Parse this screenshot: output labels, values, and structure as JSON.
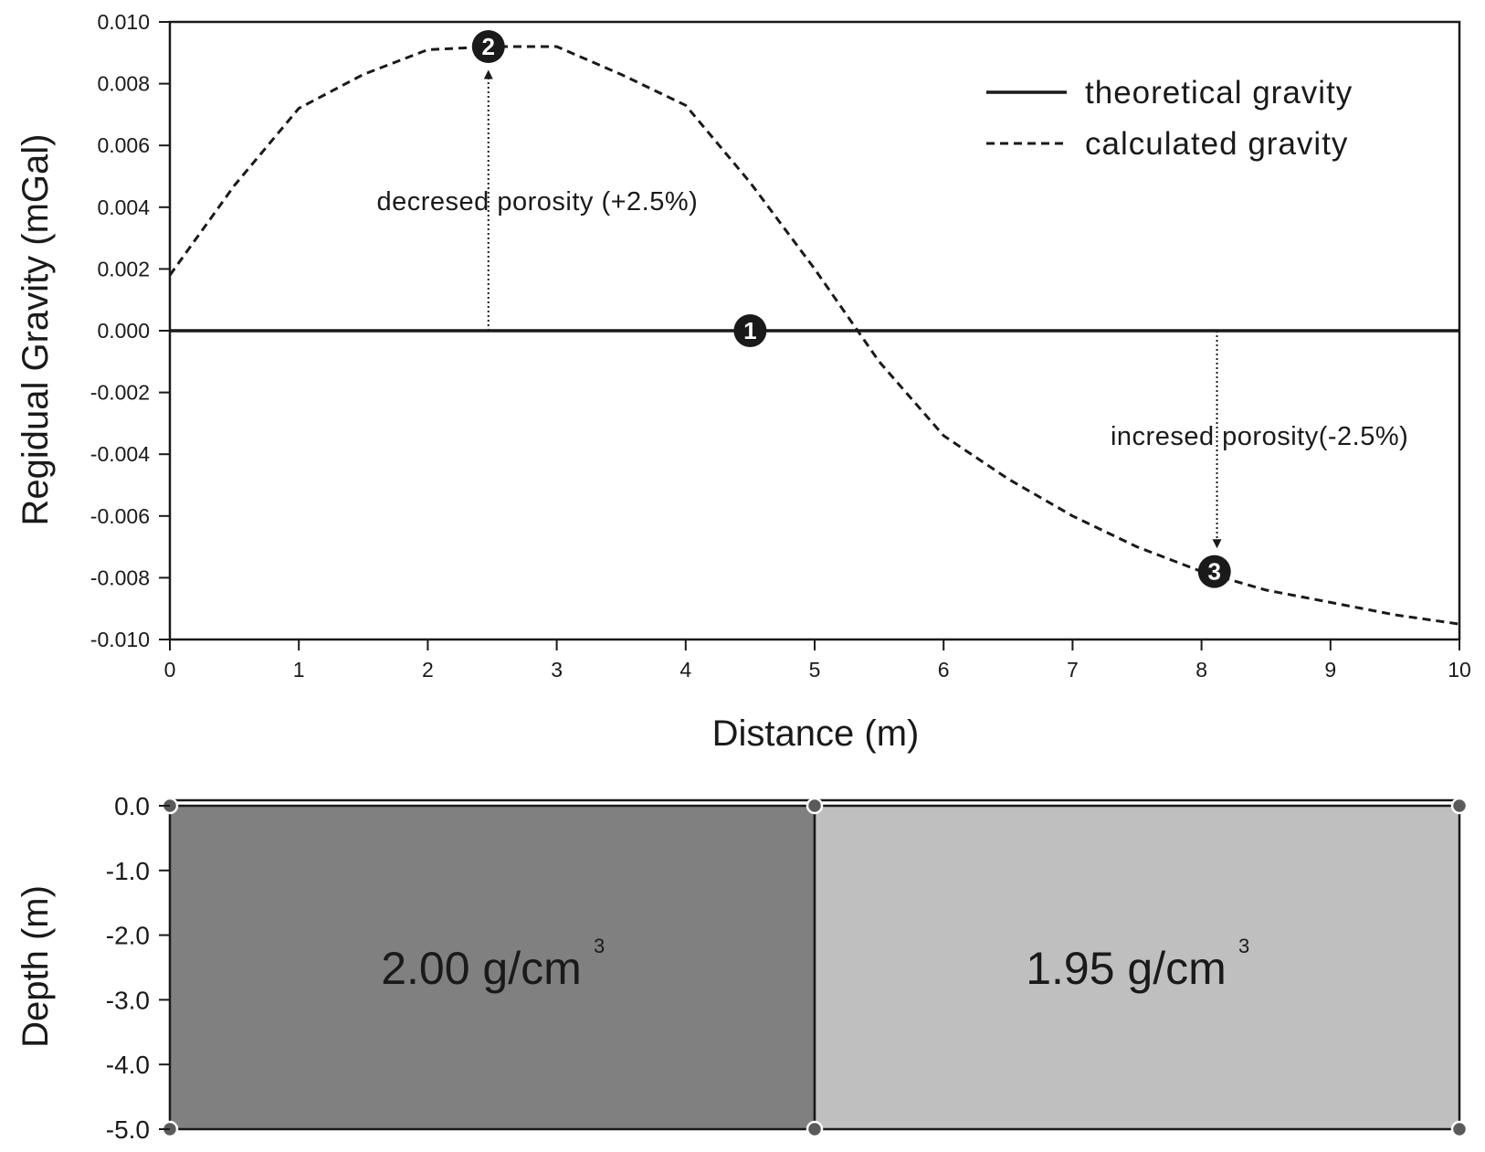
{
  "chart_data": [
    {
      "type": "line",
      "xlabel": "Distance (m)",
      "ylabel": "Regidual Gravity (mGal)",
      "xlim": [
        0,
        10
      ],
      "ylim": [
        -0.01,
        0.01
      ],
      "x_ticks": [
        "0",
        "1",
        "2",
        "3",
        "4",
        "5",
        "6",
        "7",
        "8",
        "9",
        "10"
      ],
      "y_ticks": [
        "0.010",
        "0.008",
        "0.006",
        "0.004",
        "0.002",
        "0.000",
        "-0.002",
        "-0.004",
        "-0.006",
        "-0.008",
        "-0.010"
      ],
      "grid": false,
      "legend_position": "top-right",
      "series": [
        {
          "name": "theoretical  gravity",
          "style": "solid",
          "x": [
            0,
            10
          ],
          "y": [
            0.0,
            0.0
          ]
        },
        {
          "name": "calculated  gravity",
          "style": "dashed",
          "x": [
            0,
            0.5,
            1,
            1.5,
            2,
            2.5,
            3,
            3.5,
            4,
            4.5,
            5,
            5.5,
            6,
            6.5,
            7,
            7.5,
            8,
            8.5,
            9,
            9.5,
            10
          ],
          "y": [
            0.0018,
            0.0047,
            0.0072,
            0.0083,
            0.0091,
            0.0092,
            0.0092,
            0.0083,
            0.0073,
            0.0048,
            0.002,
            -0.001,
            -0.0034,
            -0.0048,
            -0.006,
            -0.007,
            -0.0078,
            -0.0084,
            -0.0088,
            -0.0092,
            -0.0095
          ]
        }
      ],
      "markers": [
        {
          "label": "1",
          "x": 4.5,
          "y": 0.0
        },
        {
          "label": "2",
          "x": 2.47,
          "y": 0.0092
        },
        {
          "label": "3",
          "x": 8.1,
          "y": -0.0078
        }
      ],
      "annotations": [
        {
          "text": "decresed porosity (+2.5%)",
          "arrow_x": 2.47,
          "from_y": 0.0,
          "to_y": 0.0083,
          "label_x": 2.85,
          "label_y": 0.0042
        },
        {
          "text": "incresed porosity(-2.5%)",
          "arrow_x": 8.12,
          "from_y": 0.0,
          "to_y": -0.0069,
          "label_x": 8.45,
          "label_y": -0.0034
        }
      ]
    },
    {
      "type": "diagram",
      "ylabel": "Depth (m)",
      "xlim": [
        0,
        10
      ],
      "ylim": [
        -5.0,
        0.0
      ],
      "y_ticks": [
        "0.0",
        "-1.0",
        "-2.0",
        "-3.0",
        "-4.0",
        "-5.0"
      ],
      "blocks": [
        {
          "x0": 0,
          "x1": 5,
          "label": "2.00 g/cm",
          "superscript": "3",
          "color": "#808080"
        },
        {
          "x0": 5,
          "x1": 10,
          "label": "1.95 g/cm",
          "superscript": "3",
          "color": "#bfbfbf"
        }
      ]
    }
  ]
}
